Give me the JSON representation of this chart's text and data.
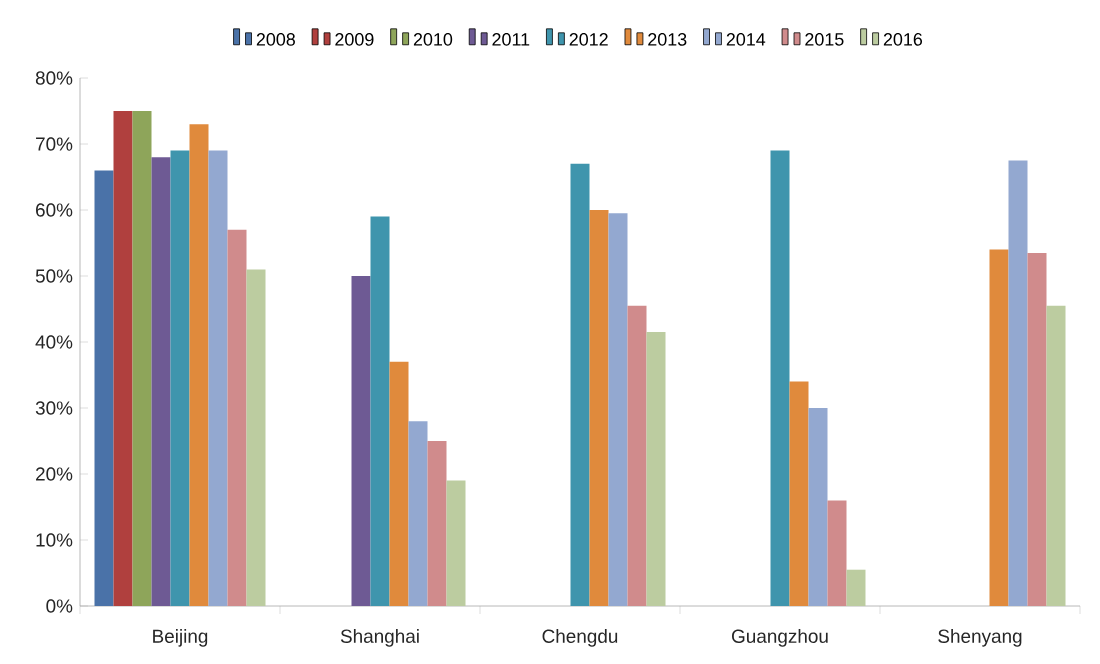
{
  "chart_data": {
    "type": "bar",
    "categories": [
      "Beijing",
      "Shanghai",
      "Chengdu",
      "Guangzhou",
      "Shenyang"
    ],
    "series": [
      {
        "name": "2008",
        "color": "#4a72a8",
        "values": [
          66,
          null,
          null,
          null,
          null
        ]
      },
      {
        "name": "2009",
        "color": "#b0403e",
        "values": [
          75,
          null,
          null,
          null,
          null
        ]
      },
      {
        "name": "2010",
        "color": "#8ea55a",
        "values": [
          75,
          null,
          null,
          null,
          null
        ]
      },
      {
        "name": "2011",
        "color": "#6e5a94",
        "values": [
          68,
          50,
          null,
          null,
          null
        ]
      },
      {
        "name": "2012",
        "color": "#3f95ad",
        "values": [
          69,
          59,
          67,
          69,
          null
        ]
      },
      {
        "name": "2013",
        "color": "#e08a3c",
        "values": [
          73,
          37,
          60,
          34,
          54
        ]
      },
      {
        "name": "2014",
        "color": "#93a8d0",
        "values": [
          69,
          28,
          59.5,
          30,
          67.5
        ]
      },
      {
        "name": "2015",
        "color": "#d08b8c",
        "values": [
          57,
          25,
          45.5,
          16,
          53.5
        ]
      },
      {
        "name": "2016",
        "color": "#bccca0",
        "values": [
          51,
          19,
          41.5,
          5.5,
          45.5
        ]
      }
    ],
    "ylim": [
      0,
      80
    ],
    "yticks": [
      {
        "value": 0,
        "label": "0%"
      },
      {
        "value": 10,
        "label": "10%"
      },
      {
        "value": 20,
        "label": "20%"
      },
      {
        "value": 30,
        "label": "30%"
      },
      {
        "value": 40,
        "label": "40%"
      },
      {
        "value": 50,
        "label": "50%"
      },
      {
        "value": 60,
        "label": "60%"
      },
      {
        "value": 70,
        "label": "70%"
      },
      {
        "value": 80,
        "label": "80%"
      }
    ],
    "grid": false,
    "legend": "top"
  }
}
